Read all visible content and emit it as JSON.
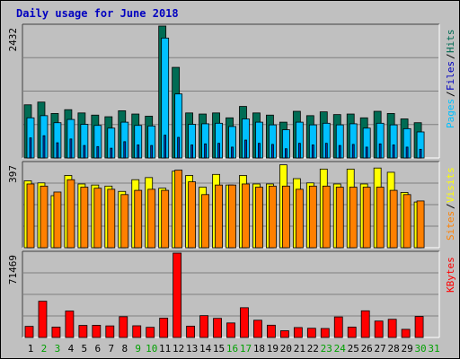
{
  "title": "Daily usage for June 2018",
  "colors": {
    "hits": "#006c54",
    "files": "#00c0ff",
    "pages": "#00c0ff",
    "visits": "#ffff00",
    "sites": "#ff8000",
    "kbytes": "#ff0000",
    "title": "#0000c0",
    "weekend_day": "#00a000",
    "weekday_day": "#000000",
    "background": "#c0c0c0",
    "panel": "#c0c0c0",
    "grid": "#808080"
  },
  "chart_data": [
    {
      "type": "bar",
      "name": "hits-files-pages",
      "ymax_label": "2432",
      "ymax": 2432,
      "legend": [
        {
          "label": "Pages",
          "color": "#00c0ff"
        },
        {
          "label": "/",
          "color": "#000000"
        },
        {
          "label": "Files",
          "color": "#0000c0"
        },
        {
          "label": "/",
          "color": "#000000"
        },
        {
          "label": "Hits",
          "color": "#006c54"
        }
      ],
      "categories": [
        "1",
        "2",
        "3",
        "4",
        "5",
        "6",
        "7",
        "8",
        "9",
        "10",
        "11",
        "12",
        "13",
        "14",
        "15",
        "16",
        "17",
        "18",
        "19",
        "20",
        "21",
        "22",
        "23",
        "24",
        "25",
        "26",
        "27",
        "28",
        "29",
        "30",
        "31"
      ],
      "series": [
        {
          "name": "Hits",
          "values": [
            980,
            1030,
            820,
            890,
            830,
            790,
            760,
            870,
            810,
            770,
            2432,
            1670,
            830,
            810,
            830,
            740,
            950,
            830,
            790,
            660,
            860,
            780,
            850,
            800,
            810,
            740,
            860,
            820,
            720,
            650,
            0
          ]
        },
        {
          "name": "Files",
          "values": [
            740,
            780,
            650,
            710,
            620,
            600,
            550,
            660,
            600,
            590,
            2210,
            1180,
            620,
            630,
            640,
            580,
            720,
            660,
            610,
            520,
            660,
            610,
            640,
            610,
            630,
            550,
            640,
            610,
            540,
            480,
            0
          ]
        },
        {
          "name": "Pages",
          "values": [
            370,
            410,
            280,
            350,
            230,
            210,
            180,
            300,
            240,
            230,
            420,
            380,
            240,
            260,
            270,
            200,
            330,
            270,
            250,
            170,
            270,
            240,
            270,
            230,
            250,
            200,
            260,
            240,
            200,
            160,
            0
          ]
        }
      ]
    },
    {
      "type": "bar",
      "name": "visits-sites",
      "ymax_label": "397",
      "ymax": 397,
      "legend": [
        {
          "label": "Sites",
          "color": "#ff8000"
        },
        {
          "label": "/",
          "color": "#000000"
        },
        {
          "label": "Visits",
          "color": "#ffff00"
        }
      ],
      "categories": [
        "1",
        "2",
        "3",
        "4",
        "5",
        "6",
        "7",
        "8",
        "9",
        "10",
        "11",
        "12",
        "13",
        "14",
        "15",
        "16",
        "17",
        "18",
        "19",
        "20",
        "21",
        "22",
        "23",
        "24",
        "25",
        "26",
        "27",
        "28",
        "29",
        "30",
        "31"
      ],
      "series": [
        {
          "name": "Visits",
          "values": [
            315,
            305,
            245,
            340,
            300,
            295,
            290,
            265,
            320,
            330,
            280,
            360,
            340,
            285,
            345,
            295,
            340,
            300,
            300,
            390,
            325,
            305,
            370,
            300,
            370,
            300,
            375,
            355,
            260,
            215,
            0
          ]
        },
        {
          "name": "Sites",
          "values": [
            300,
            290,
            262,
            320,
            285,
            280,
            275,
            250,
            270,
            275,
            270,
            365,
            310,
            250,
            295,
            295,
            300,
            285,
            290,
            290,
            275,
            290,
            290,
            285,
            285,
            285,
            285,
            270,
            250,
            220,
            0
          ]
        }
      ]
    },
    {
      "type": "bar",
      "name": "kbytes",
      "ymax_label": "71469",
      "ymax": 71469,
      "legend": [
        {
          "label": "KBytes",
          "color": "#ff0000"
        }
      ],
      "categories": [
        "1",
        "2",
        "3",
        "4",
        "5",
        "6",
        "7",
        "8",
        "9",
        "10",
        "11",
        "12",
        "13",
        "14",
        "15",
        "16",
        "17",
        "18",
        "19",
        "20",
        "21",
        "22",
        "23",
        "24",
        "25",
        "26",
        "27",
        "28",
        "29",
        "30",
        "31"
      ],
      "series": [
        {
          "name": "KBytes",
          "values": [
            9400,
            30700,
            8800,
            22400,
            10200,
            10300,
            9800,
            17600,
            9900,
            8600,
            16400,
            71469,
            9600,
            18500,
            16200,
            12300,
            25200,
            14600,
            10400,
            5700,
            8400,
            7800,
            7600,
            17400,
            8800,
            22600,
            13900,
            15400,
            6900,
            17800,
            0
          ]
        }
      ]
    }
  ],
  "days": {
    "labels": [
      "1",
      "2",
      "3",
      "4",
      "5",
      "6",
      "7",
      "8",
      "9",
      "10",
      "11",
      "12",
      "13",
      "14",
      "15",
      "16",
      "17",
      "18",
      "19",
      "20",
      "21",
      "22",
      "23",
      "24",
      "25",
      "26",
      "27",
      "28",
      "29",
      "30",
      "31"
    ],
    "weekend": [
      false,
      true,
      true,
      false,
      false,
      false,
      false,
      false,
      true,
      true,
      false,
      false,
      false,
      false,
      false,
      true,
      true,
      false,
      false,
      false,
      false,
      false,
      true,
      true,
      false,
      false,
      false,
      false,
      false,
      true,
      true
    ]
  }
}
